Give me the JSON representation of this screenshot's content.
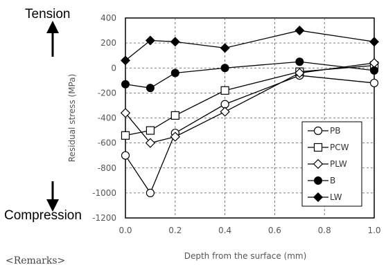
{
  "chart_data": {
    "type": "line",
    "title": "",
    "xlabel": "Depth from the surface (mm)",
    "ylabel": "Residual stress (MPa)",
    "xlim": [
      0.0,
      1.0
    ],
    "ylim": [
      -1200,
      400
    ],
    "x_ticks": [
      "0.0",
      "0.2",
      "0.4",
      "0.6",
      "0.8",
      "1.0"
    ],
    "y_ticks": [
      "400",
      "200",
      "0",
      "-200",
      "-400",
      "-600",
      "-800",
      "-1000",
      "-1200"
    ],
    "grid": true,
    "legend_position": "bottom-right",
    "tension_label": "Tension",
    "compression_label": "Compression",
    "remarks_label": "<Remarks>",
    "series": [
      {
        "name": "PB",
        "marker": "open-circle",
        "x": [
          0.0,
          0.1,
          0.2,
          0.4,
          0.7,
          1.0
        ],
        "y": [
          -700,
          -1000,
          -520,
          -290,
          -60,
          -120
        ]
      },
      {
        "name": "PCW",
        "marker": "open-square",
        "x": [
          0.0,
          0.1,
          0.2,
          0.4,
          0.7,
          1.0
        ],
        "y": [
          -540,
          -500,
          -380,
          -180,
          -30,
          20
        ]
      },
      {
        "name": "PLW",
        "marker": "open-diamond",
        "x": [
          0.0,
          0.1,
          0.2,
          0.4,
          0.7,
          1.0
        ],
        "y": [
          -360,
          -600,
          -550,
          -350,
          -40,
          40
        ]
      },
      {
        "name": "B",
        "marker": "filled-circle",
        "x": [
          0.0,
          0.1,
          0.2,
          0.4,
          0.7,
          1.0
        ],
        "y": [
          -130,
          -160,
          -40,
          0,
          50,
          -20
        ]
      },
      {
        "name": "LW",
        "marker": "filled-diamond",
        "x": [
          0.0,
          0.1,
          0.2,
          0.4,
          0.7,
          1.0
        ],
        "y": [
          60,
          220,
          210,
          160,
          300,
          210
        ]
      }
    ]
  }
}
